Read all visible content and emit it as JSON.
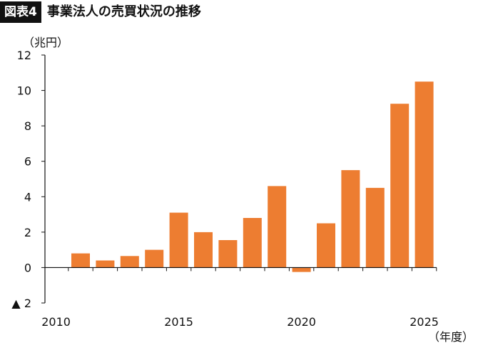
{
  "header": {
    "badge": "図表4",
    "title": "事業法人の売買状況の推移"
  },
  "chart_data": {
    "type": "bar",
    "ylabel": "（兆円）",
    "xlabel": "（年度）",
    "ylim": [
      -2,
      12
    ],
    "y_ticks": [
      {
        "value": 12,
        "label": "12"
      },
      {
        "value": 10,
        "label": "10"
      },
      {
        "value": 8,
        "label": "8"
      },
      {
        "value": 6,
        "label": "6"
      },
      {
        "value": 4,
        "label": "4"
      },
      {
        "value": 2,
        "label": "2"
      },
      {
        "value": 0,
        "label": "0"
      },
      {
        "value": -2,
        "label": "▲ 2"
      }
    ],
    "x_ticks": [
      {
        "value": 2010,
        "label": "2010"
      },
      {
        "value": 2015,
        "label": "2015"
      },
      {
        "value": 2020,
        "label": "2020"
      },
      {
        "value": 2025,
        "label": "2025"
      }
    ],
    "categories": [
      "2011",
      "2012",
      "2013",
      "2014",
      "2015",
      "2016",
      "2017",
      "2018",
      "2019",
      "2020",
      "2021",
      "2022",
      "2023",
      "2024",
      "2025"
    ],
    "values": [
      0.8,
      0.4,
      0.65,
      1.0,
      3.1,
      2.0,
      1.55,
      2.8,
      4.6,
      -0.25,
      2.5,
      5.5,
      4.5,
      9.25,
      10.5
    ],
    "bar_color": "#ed7d31",
    "grid": false
  }
}
